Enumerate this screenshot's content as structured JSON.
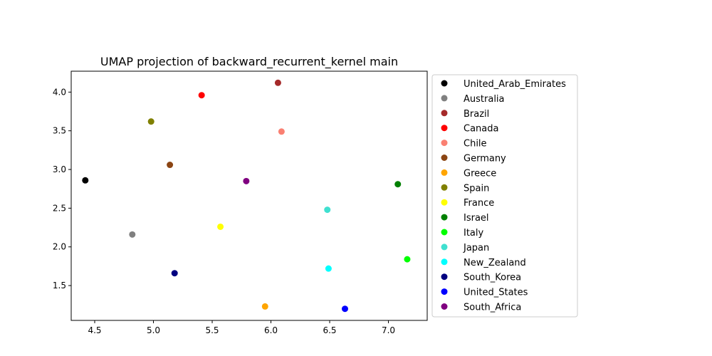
{
  "chart_data": {
    "type": "scatter",
    "title": "UMAP projection of backward_recurrent_kernel main",
    "xlabel": "",
    "ylabel": "",
    "xlim": [
      4.3,
      7.33
    ],
    "ylim": [
      1.05,
      4.27
    ],
    "xticks": [
      "4.5",
      "5.0",
      "5.5",
      "6.0",
      "6.5",
      "7.0"
    ],
    "yticks": [
      "1.5",
      "2.0",
      "2.5",
      "3.0",
      "3.5",
      "4.0"
    ],
    "grid": false,
    "legend_position": "outside-right",
    "series": [
      {
        "name": "United_Arab_Emirates",
        "color": "#000000",
        "x": 4.42,
        "y": 2.86
      },
      {
        "name": "Australia",
        "color": "#808080",
        "x": 4.82,
        "y": 2.16
      },
      {
        "name": "Brazil",
        "color": "#a52a2a",
        "x": 6.06,
        "y": 4.12
      },
      {
        "name": "Canada",
        "color": "#ff0000",
        "x": 5.41,
        "y": 3.96
      },
      {
        "name": "Chile",
        "color": "#fa8072",
        "x": 6.09,
        "y": 3.49
      },
      {
        "name": "Germany",
        "color": "#8b4513",
        "x": 5.14,
        "y": 3.06
      },
      {
        "name": "Greece",
        "color": "#ffa500",
        "x": 5.95,
        "y": 1.23
      },
      {
        "name": "Spain",
        "color": "#808000",
        "x": 4.98,
        "y": 3.62
      },
      {
        "name": "France",
        "color": "#ffff00",
        "x": 5.57,
        "y": 2.26
      },
      {
        "name": "Israel",
        "color": "#008000",
        "x": 7.08,
        "y": 2.81
      },
      {
        "name": "Italy",
        "color": "#00ff00",
        "x": 7.16,
        "y": 1.84
      },
      {
        "name": "Japan",
        "color": "#40e0d0",
        "x": 6.48,
        "y": 2.48
      },
      {
        "name": "New_Zealand",
        "color": "#00ffff",
        "x": 6.49,
        "y": 1.72
      },
      {
        "name": "South_Korea",
        "color": "#000080",
        "x": 5.18,
        "y": 1.66
      },
      {
        "name": "United_States",
        "color": "#0000ff",
        "x": 6.63,
        "y": 1.2
      },
      {
        "name": "South_Africa",
        "color": "#800080",
        "x": 5.79,
        "y": 2.85
      }
    ]
  }
}
